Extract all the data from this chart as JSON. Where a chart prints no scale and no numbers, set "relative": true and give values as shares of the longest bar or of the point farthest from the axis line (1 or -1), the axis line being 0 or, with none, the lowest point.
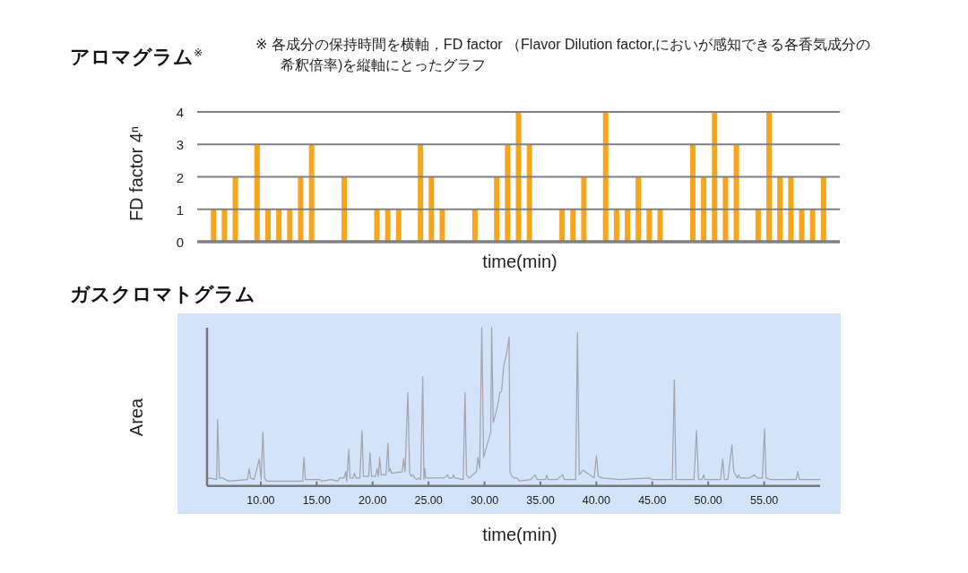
{
  "chart_data": [
    {
      "type": "bar",
      "title": "アロマグラム$^{※}$",
      "annotations": [
        "※ 各成分の保持時間を横軸，FD factor （Flavor Dilution factor,においが感知できる各香気成分の希釈倍率)を縦軸にとったグラフ"
      ],
      "xlabel": "time(min)",
      "ylabel": "FD factor 4ⁿ",
      "categories": [
        null,
        null,
        null,
        null,
        null,
        null,
        null,
        null,
        null,
        null,
        null,
        null,
        null,
        null,
        null,
        null,
        null,
        null,
        null,
        null,
        null,
        null,
        null,
        null,
        null,
        null,
        null,
        null,
        null,
        null,
        null,
        null,
        null,
        null,
        null,
        null,
        null,
        null,
        null,
        null,
        null,
        null,
        null,
        null,
        null,
        null,
        null,
        null,
        null,
        null,
        null,
        null,
        null,
        null,
        null,
        null,
        null,
        null,
        null
      ],
      "values": [
        null,
        1,
        1,
        2,
        null,
        3,
        1,
        1,
        1,
        2,
        3,
        null,
        null,
        2,
        null,
        null,
        1,
        1,
        1,
        null,
        3,
        2,
        1,
        null,
        null,
        1,
        null,
        2,
        3,
        4,
        3,
        null,
        null,
        1,
        1,
        2,
        null,
        4,
        1,
        1,
        2,
        1,
        1,
        null,
        null,
        3,
        2,
        4,
        2,
        3,
        null,
        1,
        4,
        2,
        2,
        1,
        1,
        2,
        null
      ],
      "color": "#f8a51b",
      "ylim": [
        0,
        4
      ],
      "yticks": [
        0,
        1,
        2,
        3,
        4
      ],
      "grid": "y"
    },
    {
      "type": "line",
      "title": "ガスクロマトグラム",
      "xlabel": "time(min)",
      "ylabel": "Area",
      "relative": true,
      "color": "#a3a3ab",
      "x": [
        5.2,
        5.4,
        6.06,
        6.14,
        6.3,
        6.6,
        7.14,
        8.82,
        8.96,
        9.09,
        9.41,
        9.87,
        10.03,
        10.19,
        10.35,
        10.54,
        13.75,
        13.86,
        13.99,
        15.3,
        15.43,
        16.29,
        16.9,
        17.04,
        17.44,
        17.6,
        17.68,
        17.87,
        17.98,
        18.25,
        18.38,
        18.51,
        18.86,
        19.05,
        19.18,
        19.64,
        19.77,
        19.9,
        20.27,
        20.4,
        20.52,
        20.63,
        20.76,
        21.19,
        21.38,
        21.46,
        21.57,
        21.7,
        22.66,
        22.77,
        22.9,
        23.15,
        23.31,
        23.47,
        23.6,
        23.76,
        23.95,
        24.1,
        24.3,
        24.48,
        24.59,
        24.67,
        24.75,
        26.41,
        26.7,
        26.8,
        27.13,
        27.24,
        27.35,
        28.1,
        28.26,
        28.39,
        28.63,
        28.96,
        29.28,
        29.41,
        29.57,
        29.76,
        29.92,
        30.56,
        30.64,
        30.78,
        31.05,
        31.27,
        31.37,
        31.53,
        31.72,
        31.99,
        32.2,
        32.28,
        32.44,
        32.65,
        32.9,
        33.13,
        34.12,
        34.52,
        34.71,
        35.45,
        35.56,
        35.67,
        36.52,
        36.65,
        37.0,
        37.13,
        38.15,
        38.31,
        38.47,
        38.79,
        39.8,
        40.01,
        40.17,
        40.52,
        42.12,
        44.79,
        44.92,
        46.79,
        46.97,
        47.11,
        48.73,
        48.95,
        49.13,
        49.45,
        49.59,
        49.72,
        51.11,
        51.29,
        51.45,
        51.75,
        52.12,
        52.28,
        52.6,
        52.73,
        52.85,
        53.72,
        54.12,
        54.39,
        54.84,
        55.03,
        55.16,
        55.59,
        57.85,
        58.01,
        58.15,
        60
      ],
      "values": [
        0.04,
        0.05,
        0.04,
        0.42,
        0.05,
        0.05,
        0.03,
        0.04,
        0.11,
        0.05,
        0.04,
        0.17,
        0.04,
        0.34,
        0.05,
        0.03,
        0.03,
        0.18,
        0.04,
        0.04,
        0.03,
        0.04,
        0.03,
        0.05,
        0.05,
        0.09,
        0.03,
        0.23,
        0.05,
        0.05,
        0.08,
        0.05,
        0.05,
        0.35,
        0.06,
        0.06,
        0.21,
        0.06,
        0.06,
        0.11,
        0.06,
        0.18,
        0.07,
        0.07,
        0.27,
        0.09,
        0.11,
        0.08,
        0.09,
        0.17,
        0.09,
        0.59,
        0.08,
        0.06,
        0.07,
        0.05,
        0.04,
        0.05,
        0.04,
        0.69,
        0.04,
        0.11,
        0.05,
        0.05,
        0.07,
        0.05,
        0.05,
        0.07,
        0.05,
        0.04,
        0.59,
        0.07,
        0.05,
        0.07,
        0.09,
        0.18,
        0.11,
        1,
        0.18,
        0.34,
        1,
        0.4,
        0.47,
        0.54,
        0.59,
        0.6,
        0.76,
        0.84,
        0.94,
        0.09,
        0.06,
        0.05,
        0.05,
        0.03,
        0.04,
        0.07,
        0.04,
        0.04,
        0.07,
        0.04,
        0.04,
        0.05,
        0.07,
        0.04,
        0.04,
        0.97,
        0.07,
        0.1,
        0.05,
        0.19,
        0.06,
        0.05,
        0.04,
        0.05,
        0.04,
        0.04,
        0.67,
        0.04,
        0.04,
        0.35,
        0.04,
        0.04,
        0.07,
        0.04,
        0.04,
        0.17,
        0.04,
        0.04,
        0.26,
        0.09,
        0.05,
        0.07,
        0.05,
        0.05,
        0.07,
        0.05,
        0.05,
        0.36,
        0.05,
        0.04,
        0.04,
        0.09,
        0.04,
        0.04
      ],
      "xlim": [
        5.2,
        60
      ],
      "xticks": [
        {
          "value": 10,
          "label": "10.00"
        },
        {
          "value": 15,
          "label": "15.00"
        },
        {
          "value": 20,
          "label": "20.00"
        },
        {
          "value": 25,
          "label": "25.00"
        },
        {
          "value": 30,
          "label": "30.00"
        },
        {
          "value": 35,
          "label": "35.00"
        },
        {
          "value": 40,
          "label": "40.00"
        },
        {
          "value": 45,
          "label": "45.00"
        },
        {
          "value": 50,
          "label": "50.00"
        },
        {
          "value": 55,
          "label": "55.00"
        }
      ]
    }
  ]
}
